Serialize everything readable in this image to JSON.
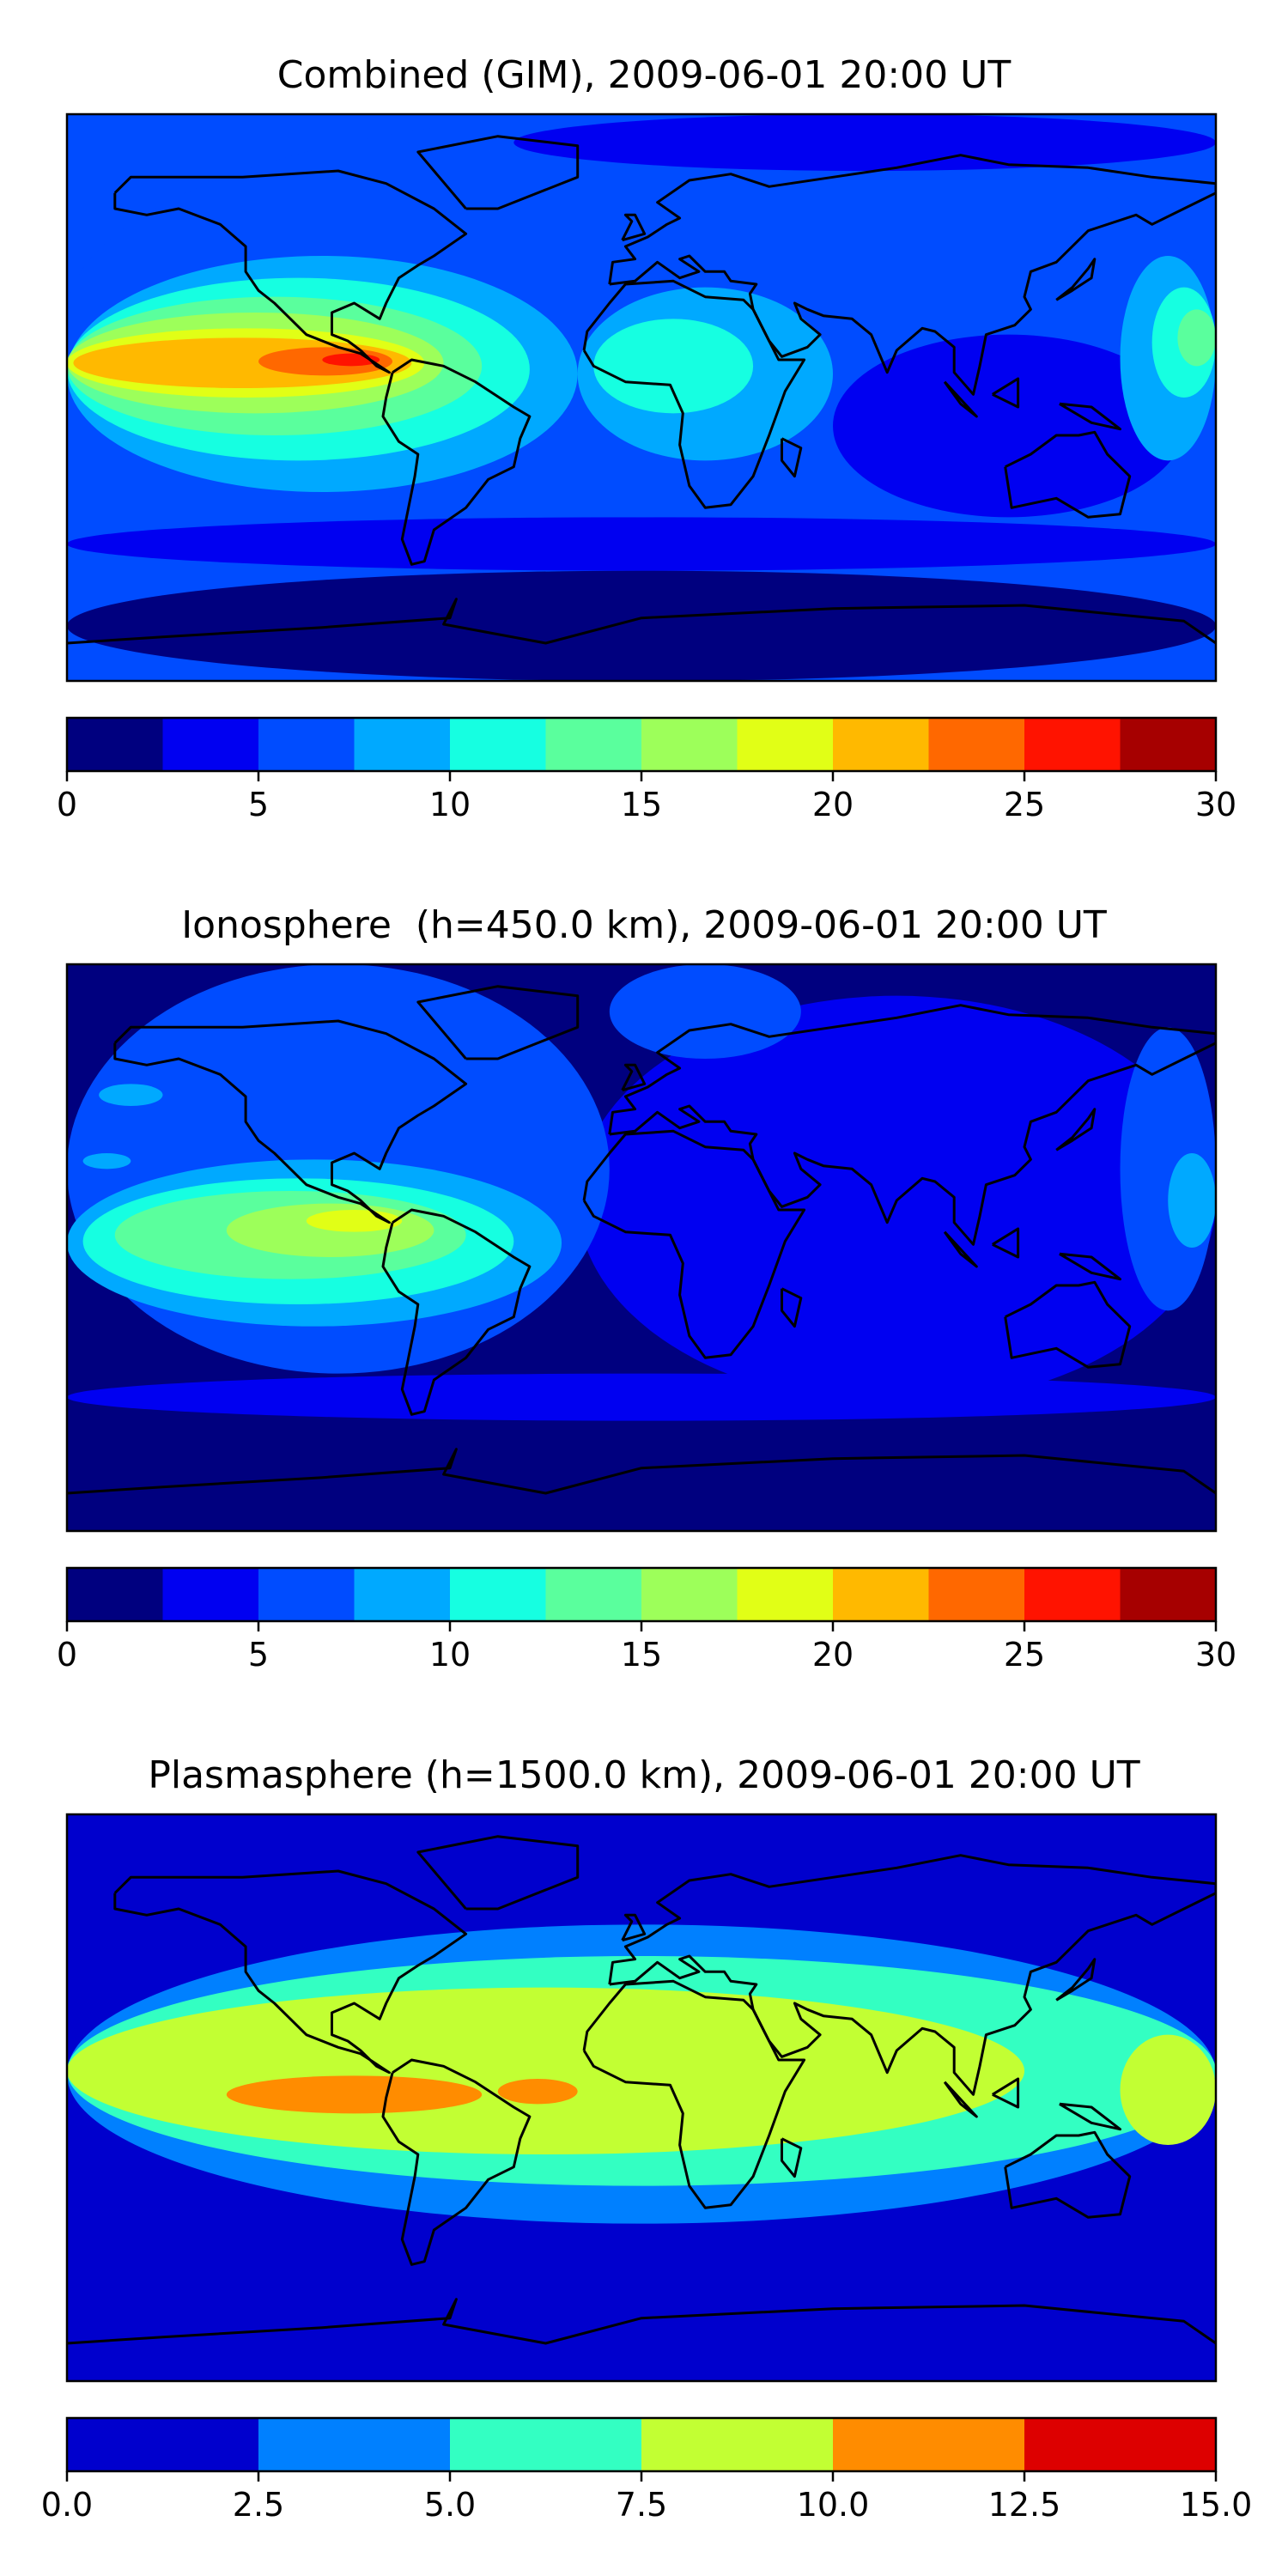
{
  "chart_data": [
    {
      "type": "heatmap",
      "subtype": "filled-contour world map",
      "title": "Combined (GIM), 2009-06-01 20:00 UT",
      "x_range": [
        -180,
        180
      ],
      "y_range": [
        -90,
        90
      ],
      "axis_ticks_shown": false,
      "background_level": 2,
      "colorbar": {
        "orientation": "horizontal",
        "position": "bottom",
        "levels": [
          0,
          2.5,
          5,
          7.5,
          10,
          12.5,
          15,
          17.5,
          20,
          22.5,
          25,
          27.5,
          30
        ],
        "colors": [
          "#00007f",
          "#0000f1",
          "#004cff",
          "#00a9ff",
          "#16ffe1",
          "#5aff9d",
          "#9dff5a",
          "#e1ff16",
          "#ffb900",
          "#ff6800",
          "#ff1300",
          "#a60000"
        ],
        "tick_values": [
          0,
          5,
          10,
          15,
          20,
          25,
          30
        ],
        "tick_labels": [
          "0",
          "5",
          "10",
          "15",
          "20",
          "25",
          "30"
        ]
      },
      "contour_regions": [
        {
          "level": 0,
          "lon": [
            -180,
            180
          ],
          "lat": [
            -90,
            -55
          ]
        },
        {
          "level": 1,
          "lon": [
            -180,
            180
          ],
          "lat": [
            -55,
            -38
          ]
        },
        {
          "level": 2,
          "lon": [
            -180,
            180
          ],
          "lat": [
            -38,
            90
          ]
        },
        {
          "level": 1,
          "lon": [
            -40,
            180
          ],
          "lat": [
            72,
            90
          ]
        },
        {
          "level": 1,
          "lon": [
            60,
            170
          ],
          "lat": [
            -38,
            20
          ]
        },
        {
          "level": 3,
          "lon": [
            -180,
            -20
          ],
          "lat": [
            -30,
            45
          ]
        },
        {
          "level": 4,
          "lon": [
            -180,
            -35
          ],
          "lat": [
            -20,
            38
          ]
        },
        {
          "level": 5,
          "lon": [
            -180,
            -50
          ],
          "lat": [
            -12,
            32
          ]
        },
        {
          "level": 6,
          "lon": [
            -180,
            -62
          ],
          "lat": [
            -5,
            27
          ]
        },
        {
          "level": 7,
          "lon": [
            -180,
            -68
          ],
          "lat": [
            0,
            22
          ]
        },
        {
          "level": 8,
          "lon": [
            -178,
            -72
          ],
          "lat": [
            3,
            19
          ]
        },
        {
          "level": 9,
          "lon": [
            -120,
            -78
          ],
          "lat": [
            7,
            16
          ]
        },
        {
          "level": 10,
          "lon": [
            -100,
            -82
          ],
          "lat": [
            10,
            14
          ]
        },
        {
          "level": 3,
          "lon": [
            -20,
            60
          ],
          "lat": [
            -20,
            35
          ]
        },
        {
          "level": 4,
          "lon": [
            -15,
            35
          ],
          "lat": [
            -5,
            25
          ]
        },
        {
          "level": 3,
          "lon": [
            150,
            180
          ],
          "lat": [
            -20,
            45
          ]
        },
        {
          "level": 4,
          "lon": [
            160,
            180
          ],
          "lat": [
            0,
            35
          ]
        },
        {
          "level": 5,
          "lon": [
            168,
            180
          ],
          "lat": [
            10,
            28
          ]
        }
      ]
    },
    {
      "type": "heatmap",
      "subtype": "filled-contour world map",
      "title": "Ionosphere  (h=450.0 km), 2009-06-01 20:00 UT",
      "x_range": [
        -180,
        180
      ],
      "y_range": [
        -90,
        90
      ],
      "axis_ticks_shown": false,
      "background_level": 0,
      "colorbar": {
        "orientation": "horizontal",
        "position": "bottom",
        "levels": [
          0,
          2.5,
          5,
          7.5,
          10,
          12.5,
          15,
          17.5,
          20,
          22.5,
          25,
          27.5,
          30
        ],
        "colors": [
          "#00007f",
          "#0000f1",
          "#004cff",
          "#00a9ff",
          "#16ffe1",
          "#5aff9d",
          "#9dff5a",
          "#e1ff16",
          "#ffb900",
          "#ff6800",
          "#ff1300",
          "#a60000"
        ],
        "tick_values": [
          0,
          5,
          10,
          15,
          20,
          25,
          30
        ],
        "tick_labels": [
          "0",
          "5",
          "10",
          "15",
          "20",
          "25",
          "30"
        ]
      },
      "contour_regions": [
        {
          "level": 1,
          "lon": [
            -20,
            180
          ],
          "lat": [
            -50,
            80
          ]
        },
        {
          "level": 1,
          "lon": [
            -180,
            180
          ],
          "lat": [
            -55,
            -40
          ]
        },
        {
          "level": 2,
          "lon": [
            -180,
            -10
          ],
          "lat": [
            -40,
            90
          ]
        },
        {
          "level": 2,
          "lon": [
            -10,
            50
          ],
          "lat": [
            60,
            90
          ]
        },
        {
          "level": 2,
          "lon": [
            150,
            180
          ],
          "lat": [
            -20,
            70
          ]
        },
        {
          "level": 3,
          "lon": [
            -180,
            -25
          ],
          "lat": [
            -25,
            28
          ]
        },
        {
          "level": 3,
          "lon": [
            165,
            180
          ],
          "lat": [
            0,
            30
          ]
        },
        {
          "level": 4,
          "lon": [
            -175,
            -40
          ],
          "lat": [
            -18,
            22
          ]
        },
        {
          "level": 5,
          "lon": [
            -165,
            -55
          ],
          "lat": [
            -10,
            18
          ]
        },
        {
          "level": 6,
          "lon": [
            -130,
            -65
          ],
          "lat": [
            -3,
            14
          ]
        },
        {
          "level": 7,
          "lon": [
            -105,
            -75
          ],
          "lat": [
            5,
            12
          ]
        },
        {
          "level": 3,
          "lon": [
            -170,
            -150
          ],
          "lat": [
            45,
            52
          ]
        },
        {
          "level": 3,
          "lon": [
            -175,
            -160
          ],
          "lat": [
            25,
            30
          ]
        }
      ]
    },
    {
      "type": "heatmap",
      "subtype": "filled-contour world map",
      "title": "Plasmasphere (h=1500.0 km), 2009-06-01 20:00 UT",
      "x_range": [
        -180,
        180
      ],
      "y_range": [
        -90,
        90
      ],
      "axis_ticks_shown": false,
      "background_level": 0,
      "colorbar": {
        "orientation": "horizontal",
        "position": "bottom",
        "levels": [
          0.0,
          2.5,
          5.0,
          7.5,
          10.0,
          12.5,
          15.0
        ],
        "colors": [
          "#0000cd",
          "#0080ff",
          "#33ffc2",
          "#c2ff33",
          "#ff8c00",
          "#dd0000"
        ],
        "tick_values": [
          0.0,
          2.5,
          5.0,
          7.5,
          10.0,
          12.5,
          15.0
        ],
        "tick_labels": [
          "0.0",
          "2.5",
          "5.0",
          "7.5",
          "10.0",
          "12.5",
          "15.0"
        ]
      },
      "contour_regions": [
        {
          "level": 1,
          "lon": [
            -180,
            180
          ],
          "lat": [
            -40,
            55
          ]
        },
        {
          "level": 2,
          "lon": [
            -180,
            180
          ],
          "lat": [
            -28,
            45
          ]
        },
        {
          "level": 3,
          "lon": [
            -180,
            120
          ],
          "lat": [
            -18,
            35
          ]
        },
        {
          "level": 3,
          "lon": [
            150,
            180
          ],
          "lat": [
            -15,
            20
          ]
        },
        {
          "level": 4,
          "lon": [
            -130,
            -50
          ],
          "lat": [
            -5,
            7
          ]
        },
        {
          "level": 4,
          "lon": [
            -45,
            -20
          ],
          "lat": [
            -2,
            6
          ]
        }
      ]
    }
  ]
}
